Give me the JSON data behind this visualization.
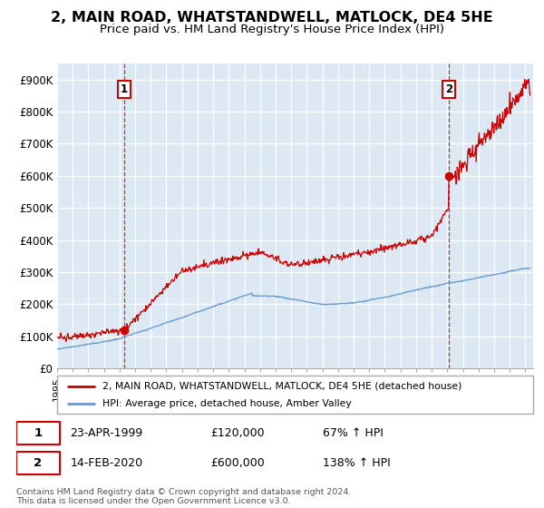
{
  "title": "2, MAIN ROAD, WHATSTANDWELL, MATLOCK, DE4 5HE",
  "subtitle": "Price paid vs. HM Land Registry's House Price Index (HPI)",
  "title_fontsize": 11.5,
  "subtitle_fontsize": 9.5,
  "ylim": [
    0,
    950000
  ],
  "yticks": [
    0,
    100000,
    200000,
    300000,
    400000,
    500000,
    600000,
    700000,
    800000,
    900000
  ],
  "ytick_labels": [
    "£0",
    "£100K",
    "£200K",
    "£300K",
    "£400K",
    "£500K",
    "£600K",
    "£700K",
    "£800K",
    "£900K"
  ],
  "background_color": "#ffffff",
  "plot_bg_color": "#dce9f5",
  "grid_color": "#ffffff",
  "sale1_x": 1999.31,
  "sale1_y": 120000,
  "sale2_x": 2020.12,
  "sale2_y": 600000,
  "hpi_line_color": "#6699cc",
  "price_line_color": "#cc0000",
  "legend_label_price": "2, MAIN ROAD, WHATSTANDWELL, MATLOCK, DE4 5HE (detached house)",
  "legend_label_hpi": "HPI: Average price, detached house, Amber Valley",
  "annotation1_label": "1",
  "annotation1_date": "23-APR-1999",
  "annotation1_price": "£120,000",
  "annotation1_hpi": "67% ↑ HPI",
  "annotation2_label": "2",
  "annotation2_date": "14-FEB-2020",
  "annotation2_price": "£600,000",
  "annotation2_hpi": "138% ↑ HPI",
  "footer": "Contains HM Land Registry data © Crown copyright and database right 2024.\nThis data is licensed under the Open Government Licence v3.0.",
  "xmin": 1995,
  "xmax": 2025.5
}
